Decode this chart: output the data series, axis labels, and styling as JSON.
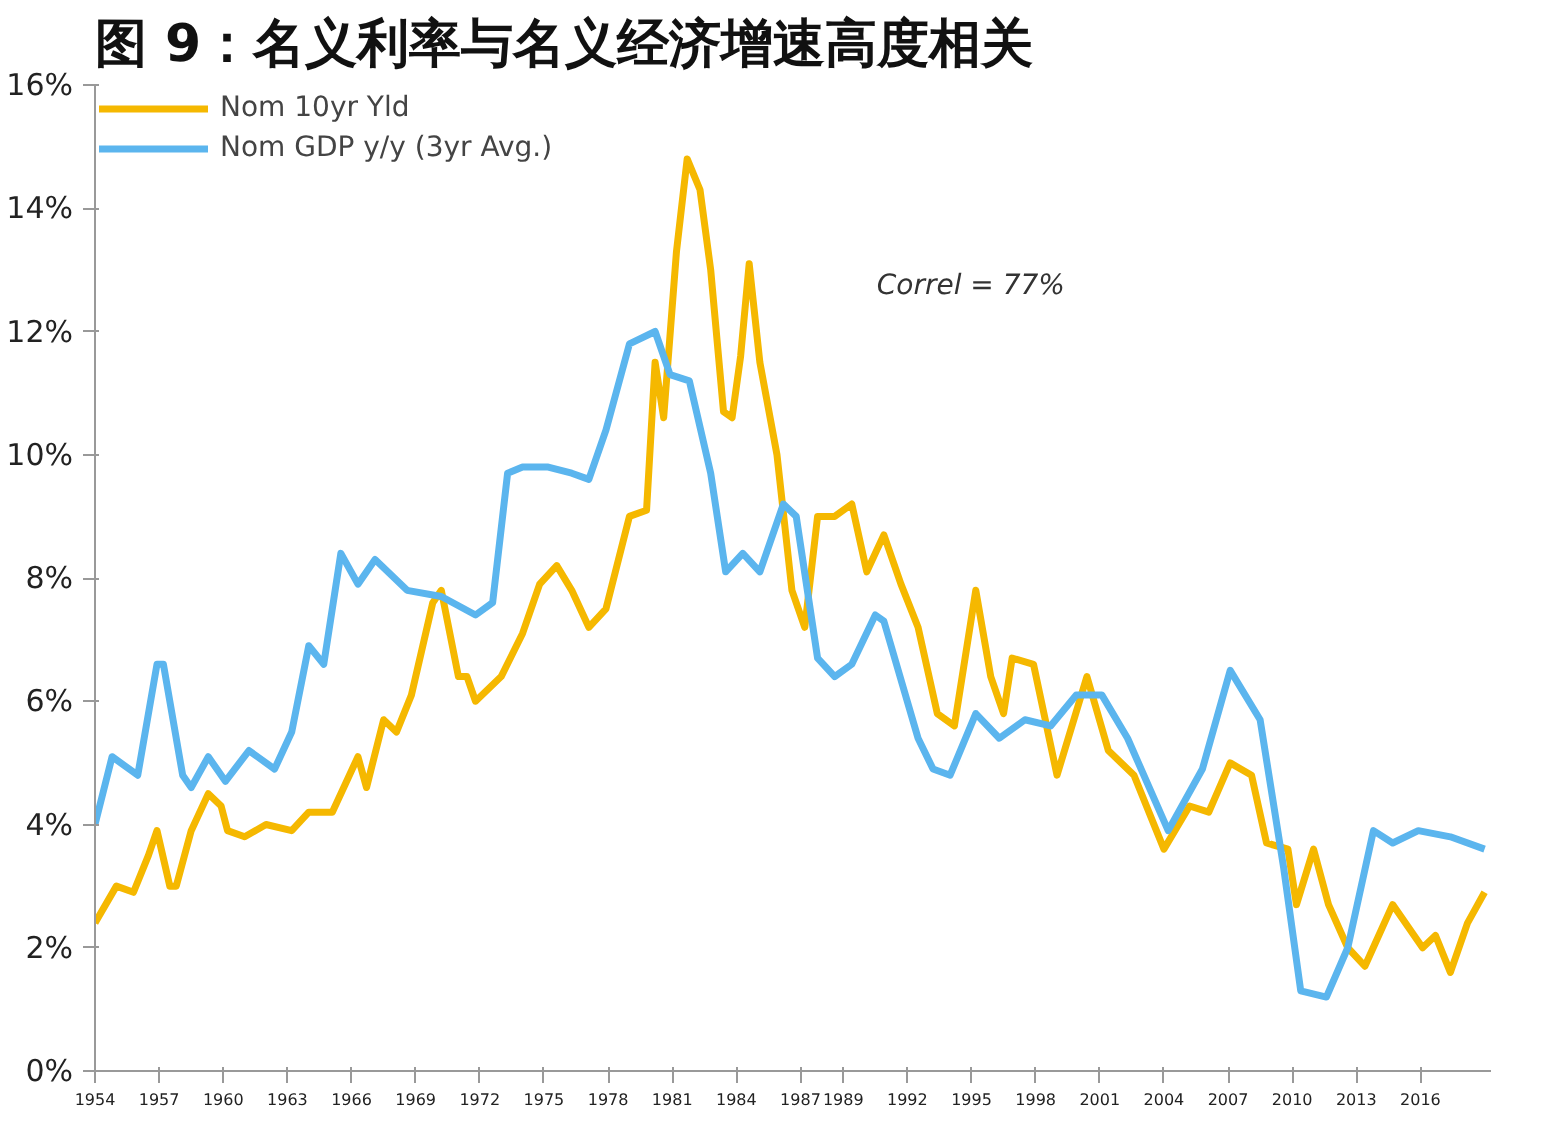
{
  "chart_data": {
    "type": "line",
    "title": "图 9：名义利率与名义经济增速高度相关",
    "series": [
      {
        "name": "Nom 10yr Yld",
        "color": "#f5b800",
        "x": [
          1954,
          1955.0,
          1955.8,
          1956.5,
          1956.9,
          1957.5,
          1957.8,
          1958.5,
          1959.3,
          1959.9,
          1960.2,
          1961.0,
          1962.0,
          1963.2,
          1964.0,
          1965.1,
          1965.9,
          1966.3,
          1966.7,
          1967.5,
          1968.1,
          1968.8,
          1969.8,
          1970.2,
          1971.0,
          1971.4,
          1971.8,
          1973.0,
          1974.0,
          1974.8,
          1975.6,
          1976.3,
          1977.1,
          1977.9,
          1979.0,
          1979.8,
          1980.2,
          1980.6,
          1981.2,
          1981.7,
          1982.3,
          1982.8,
          1983.4,
          1983.8,
          1984.2,
          1984.6,
          1985.1,
          1985.9,
          1986.6,
          1987.2,
          1987.8,
          1988.6,
          1989.4,
          1990.1,
          1990.9,
          1991.7,
          1992.5,
          1993.4,
          1994.2,
          1995.2,
          1995.9,
          1996.5,
          1996.9,
          1997.9,
          1999.0,
          2000.4,
          2001.4,
          2002.6,
          2004.0,
          2005.2,
          2006.1,
          2007.1,
          2008.1,
          2008.8,
          2009.8,
          2010.2,
          2011.0,
          2011.7,
          2012.6,
          2013.4,
          2014.7,
          2016.1,
          2016.7,
          2017.4,
          2018.2,
          2019.0
        ],
        "values": [
          2.4,
          3.0,
          2.9,
          3.5,
          3.9,
          3.0,
          3.0,
          3.9,
          4.5,
          4.3,
          3.9,
          3.8,
          4.0,
          3.9,
          4.2,
          4.2,
          4.8,
          5.1,
          4.6,
          5.7,
          5.5,
          6.1,
          7.6,
          7.8,
          6.4,
          6.4,
          6.0,
          6.4,
          7.1,
          7.9,
          8.2,
          7.8,
          7.2,
          7.5,
          9.0,
          9.1,
          11.5,
          10.6,
          13.3,
          14.8,
          14.3,
          13.0,
          10.7,
          10.6,
          11.6,
          13.1,
          11.5,
          10.0,
          7.8,
          7.2,
          9.0,
          9.0,
          9.2,
          8.1,
          8.7,
          7.9,
          7.2,
          5.8,
          5.6,
          7.8,
          6.4,
          5.8,
          6.7,
          6.6,
          4.8,
          6.4,
          5.2,
          4.8,
          3.6,
          4.3,
          4.2,
          5.0,
          4.8,
          3.7,
          3.6,
          2.7,
          3.6,
          2.7,
          2.0,
          1.7,
          2.7,
          2.0,
          2.2,
          1.6,
          2.4,
          2.9
        ]
      },
      {
        "name": "Nom GDP y/y (3yr Avg.)",
        "color": "#5bb5ee",
        "x": [
          1954,
          1954.8,
          1956.0,
          1956.9,
          1957.2,
          1958.1,
          1958.5,
          1959.3,
          1960.1,
          1961.2,
          1962.4,
          1963.2,
          1964.0,
          1964.7,
          1965.5,
          1966.3,
          1967.1,
          1968.6,
          1970.2,
          1971.8,
          1972.6,
          1973.3,
          1974.0,
          1975.2,
          1976.3,
          1977.1,
          1977.9,
          1979.0,
          1980.2,
          1980.9,
          1981.8,
          1982.8,
          1983.5,
          1984.3,
          1985.1,
          1986.2,
          1986.8,
          1987.8,
          1988.6,
          1989.4,
          1990.5,
          1990.9,
          1992.5,
          1993.2,
          1994.0,
          1995.2,
          1996.3,
          1997.5,
          1998.7,
          1999.9,
          2001.1,
          2002.3,
          2004.2,
          2005.8,
          2007.1,
          2008.5,
          2009.6,
          2010.4,
          2011.6,
          2012.6,
          2013.8,
          2014.7,
          2015.9,
          2017.4,
          2019.0
        ],
        "values": [
          4.0,
          5.1,
          4.8,
          6.6,
          6.6,
          4.8,
          4.6,
          5.1,
          4.7,
          5.2,
          4.9,
          5.5,
          6.9,
          6.6,
          8.4,
          7.9,
          8.3,
          7.8,
          7.7,
          7.4,
          7.6,
          9.7,
          9.8,
          9.8,
          9.7,
          9.6,
          10.4,
          11.8,
          12.0,
          11.3,
          11.2,
          9.7,
          8.1,
          8.4,
          8.1,
          9.2,
          9.0,
          6.7,
          6.4,
          6.6,
          7.4,
          7.3,
          5.4,
          4.9,
          4.8,
          5.8,
          5.4,
          5.7,
          5.6,
          6.1,
          6.1,
          5.4,
          3.9,
          4.9,
          6.5,
          5.7,
          3.3,
          1.3,
          1.2,
          2.0,
          3.9,
          3.7,
          3.9,
          3.8,
          3.6
        ]
      }
    ],
    "xlim": [
      1954,
      2019.3
    ],
    "ylim": [
      0,
      16
    ],
    "yticks": [
      {
        "value": 0,
        "label": "0%"
      },
      {
        "value": 2,
        "label": "2%"
      },
      {
        "value": 4,
        "label": "4%"
      },
      {
        "value": 6,
        "label": "6%"
      },
      {
        "value": 8,
        "label": "8%"
      },
      {
        "value": 10,
        "label": "10%"
      },
      {
        "value": 12,
        "label": "12%"
      },
      {
        "value": 14,
        "label": "14%"
      },
      {
        "value": 16,
        "label": "16%"
      }
    ],
    "xticks": [
      1954,
      1957,
      1960,
      1963,
      1966,
      1969,
      1972,
      1975,
      1978,
      1981,
      1984,
      1987,
      1989,
      1992,
      1995,
      1998,
      2001,
      2004,
      2007,
      2010,
      2013,
      2016
    ],
    "annotations": [
      "Correl = 77%"
    ],
    "grid": false,
    "legend": "top",
    "marker": "none",
    "line_style": "solid"
  }
}
